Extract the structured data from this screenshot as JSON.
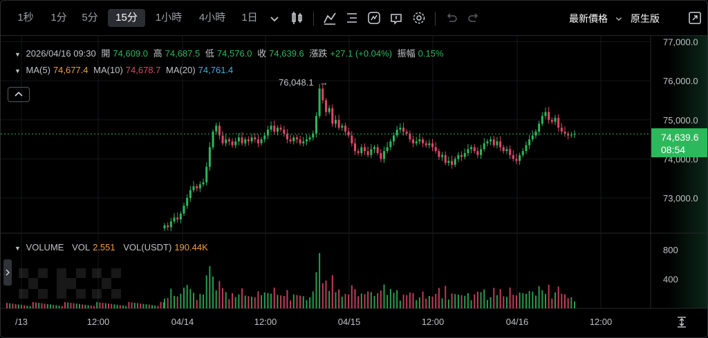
{
  "toolbar": {
    "intervals": [
      "1秒",
      "1分",
      "5分",
      "15分",
      "1小時",
      "4小時",
      "1日"
    ],
    "active_interval": "15分",
    "price_type": "最新價格",
    "view_mode": "原生版"
  },
  "legend": {
    "time": "2026/04/16 09:30",
    "open_label": "開",
    "open": "74,609.0",
    "high_label": "高",
    "high": "74,687.5",
    "low_label": "低",
    "low": "74,576.0",
    "close_label": "收",
    "close": "74,639.6",
    "change_label": "漲跌",
    "change": "+27.1 (+0.04%)",
    "amp_label": "振幅",
    "amp": "0.15%",
    "ma5_label": "MA(5)",
    "ma5": "74,677.4",
    "ma10_label": "MA(10)",
    "ma10": "74,678.7",
    "ma20_label": "MA(20)",
    "ma20": "74,761.4"
  },
  "volume_legend": {
    "title": "VOLUME",
    "vol_label": "VOL",
    "vol": "2.551",
    "usdt_label": "VOL(USDT)",
    "usdt": "190.44K"
  },
  "price_tag": {
    "price": "74,639.6",
    "countdown": "08:54"
  },
  "max_annotation": "76,048.1",
  "colors": {
    "up": "#2eb85c",
    "down": "#e2466a",
    "ma5": "#f0a13a",
    "ma20": "#3bb3e0"
  },
  "chart_data": [
    {
      "type": "candlestick",
      "title": "",
      "ylim": [
        72100,
        77150
      ],
      "y_ticks": [
        "77,000.0",
        "76,000.0",
        "75,000.0",
        "74,000.0",
        "73,000.0"
      ],
      "x_ticks": [
        "/13",
        "12:00",
        "04/14",
        "12:00",
        "04/15",
        "12:00",
        "04/16",
        "12:00"
      ],
      "last_price": 74639.6,
      "max_price": 76048.1,
      "approx_closes": [
        72300,
        72250,
        72400,
        72500,
        72450,
        72600,
        72800,
        73000,
        73200,
        73300,
        73250,
        73350,
        73400,
        73800,
        74300,
        74700,
        74850,
        74600,
        74400,
        74500,
        74450,
        74350,
        74450,
        74550,
        74400,
        74500,
        74450,
        74550,
        74500,
        74400,
        74500,
        74600,
        74750,
        74850,
        74700,
        74800,
        74750,
        74650,
        74500,
        74450,
        74550,
        74500,
        74400,
        74450,
        74500,
        74550,
        74650,
        75100,
        75800,
        75500,
        75200,
        75300,
        74900,
        75000,
        74800,
        74850,
        74700,
        74600,
        74400,
        74200,
        74150,
        74300,
        74200,
        74100,
        74250,
        74300,
        74150,
        74000,
        74200,
        74300,
        74450,
        74600,
        74750,
        74800,
        74700,
        74650,
        74500,
        74400,
        74450,
        74500,
        74400,
        74350,
        74400,
        74300,
        74200,
        74050,
        74100,
        73900,
        73950,
        73850,
        74000,
        74100,
        74050,
        74150,
        74250,
        74300,
        74200,
        74100,
        74250,
        74400,
        74450,
        74500,
        74350,
        74450,
        74300,
        74200,
        74250,
        74100,
        74000,
        73950,
        74100,
        74200,
        74350,
        74500,
        74600,
        74700,
        74900,
        75100,
        75200,
        75000,
        74950,
        75050,
        74800,
        74700,
        74650,
        74600,
        74620,
        74640
      ]
    },
    {
      "type": "bar",
      "title": "VOLUME",
      "y_ticks": [
        "800",
        "400"
      ],
      "ylim": [
        0,
        1000
      ]
    }
  ]
}
